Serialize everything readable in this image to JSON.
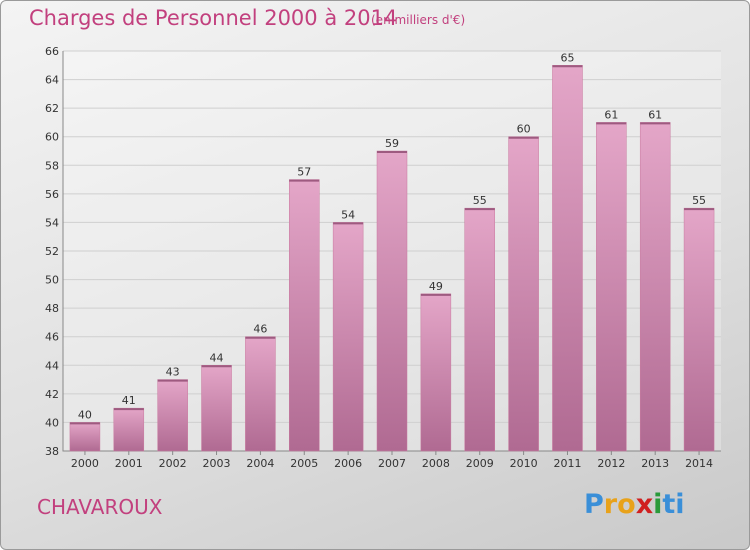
{
  "chart_data": {
    "type": "bar",
    "title": "Charges de Personnel 2000 à 2014",
    "subtitle": "(en milliers d'€)",
    "categories": [
      "2000",
      "2001",
      "2002",
      "2003",
      "2004",
      "2005",
      "2006",
      "2007",
      "2008",
      "2009",
      "2010",
      "2011",
      "2012",
      "2013",
      "2014"
    ],
    "values": [
      40,
      41,
      43,
      44,
      46,
      57,
      54,
      59,
      49,
      55,
      60,
      65,
      61,
      61,
      55
    ],
    "ylim": [
      38,
      66
    ],
    "yticks": [
      38,
      40,
      42,
      44,
      46,
      48,
      50,
      52,
      54,
      56,
      58,
      60,
      62,
      64,
      66
    ],
    "grid": true,
    "bar_color": "#d98bb3"
  },
  "commune": "CHAVAROUX",
  "logo": {
    "letters": [
      "P",
      "r",
      "o",
      "x",
      "i",
      "t",
      "i"
    ],
    "colors": [
      "#3a8fd8",
      "#e8a21a",
      "#e8a21a",
      "#d02020",
      "#2a9a3a",
      "#3a8fd8",
      "#3a8fd8"
    ]
  }
}
